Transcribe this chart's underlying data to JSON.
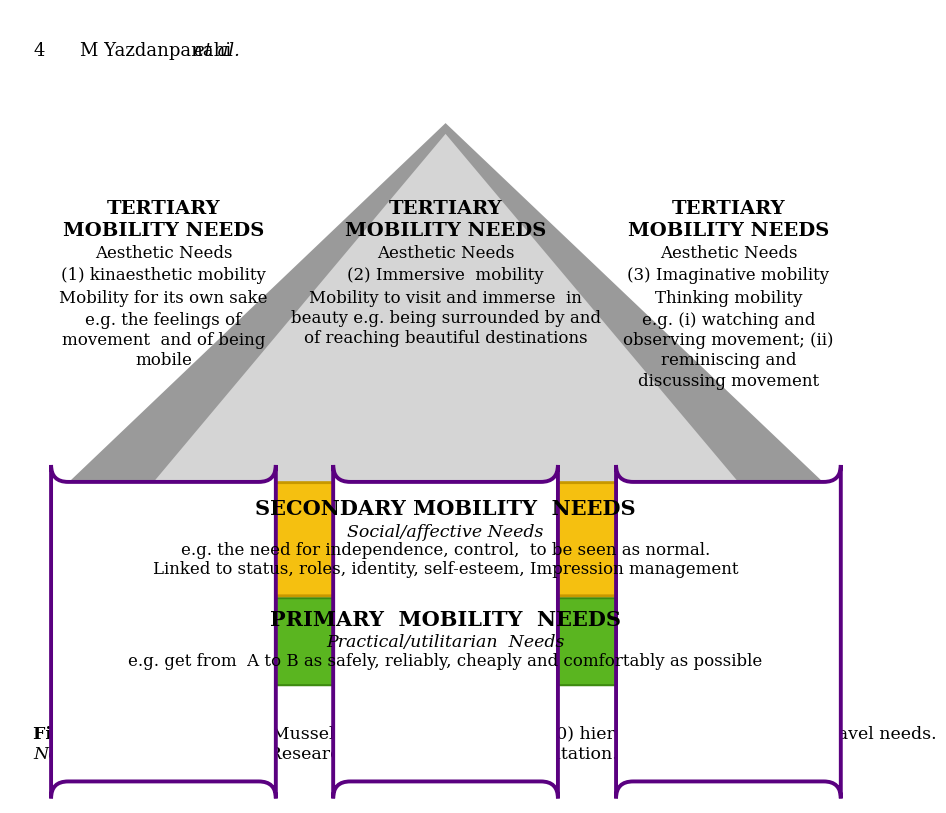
{
  "bg_color": "#ffffff",
  "triangle_outer_color": "#9a9a9a",
  "triangle_inner_color": "#d5d5d5",
  "secondary_color": "#f5c010",
  "secondary_edge": "#c89800",
  "primary_color": "#5ab520",
  "primary_edge": "#3d8a10",
  "box_border_color": "#5a0080",
  "box_bg": "#ffffff",
  "box_left": {
    "title": "TERTIARY\nMOBILITY NEEDS",
    "lines": [
      "Aesthetic Needs",
      "(1) kinaesthetic mobility",
      "Mobility for its own sake",
      "e.g. the feelings of\nmovement  and of being\nmobile"
    ]
  },
  "box_center": {
    "title": "TERTIARY\nMOBILITY NEEDS",
    "lines": [
      "Aesthetic Needs",
      "(2) Immersive  mobility",
      "Mobility to visit and immerse  in\nbeauty e.g. being surrounded by and\nof reaching beautiful destinations"
    ]
  },
  "box_right": {
    "title": "TERTIARY\nMOBILITY NEEDS",
    "lines": [
      "Aesthetic Needs",
      "(3) Imaginative mobility",
      "Thinking mobility",
      "e.g. (i) watching and\nobserving movement; (ii)\nreminiscing and\ndiscussing movement"
    ]
  },
  "secondary_title": "SECONDARY MOBILITY  NEEDS",
  "secondary_lines": [
    "Social/affective Needs",
    "e.g. the need for independence, control,  to be seen as normal.",
    "Linked to status, roles, identity, self-esteem, Impression management"
  ],
  "primary_title": "PRIMARY  MOBILITY  NEEDS",
  "primary_lines": [
    "Practical/utilitarian  Needs",
    "e.g. get from  A to B as safely, reliably, cheaply and comfortably as possible"
  ],
  "caption_bold": "Figure 1.",
  "caption_text": "  Updated model of Musselwhite and Haddad’s (2010) hierarchy of older peoples’ travel needs.",
  "caption_note_italic": "Note",
  "caption_note_rest": ": TRID: Transportation Research International Documentation.",
  "header_num": "4",
  "header_name": "M Yazdanpanahi ",
  "header_etal": "et al."
}
